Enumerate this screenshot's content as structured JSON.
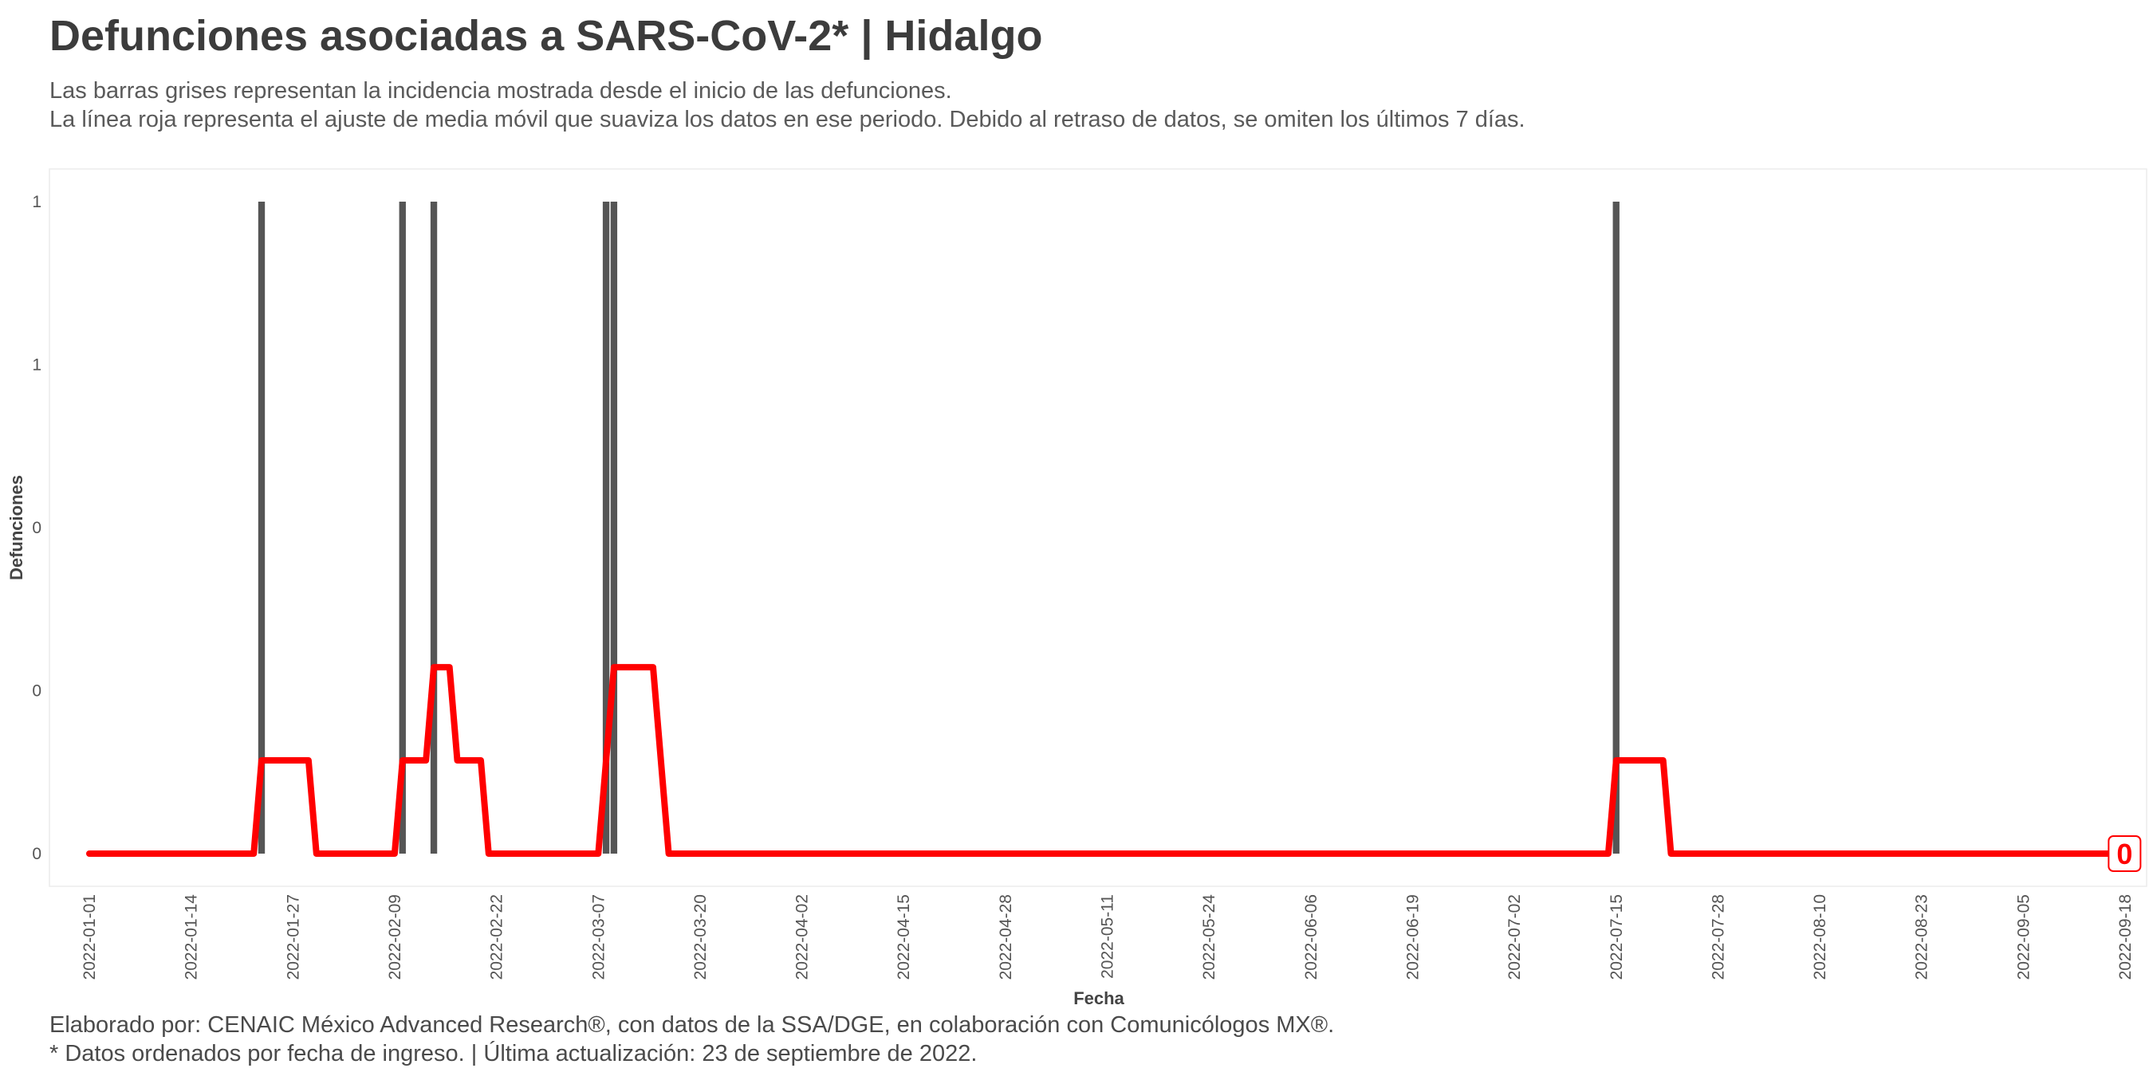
{
  "header": {
    "title": "Defunciones asociadas a SARS-CoV-2* | Hidalgo",
    "subtitle_line1": "Las barras grises representan la incidencia mostrada desde el inicio de las defunciones.",
    "subtitle_line2": "La línea roja representa el ajuste de media móvil que suaviza los datos en ese periodo. Debido al retraso de datos, se omiten los últimos 7 días."
  },
  "footer": {
    "line1": "Elaborado por: CENAIC México Advanced Research®, con datos de la SSA/DGE, en colaboración con Comunicólogos MX®.",
    "line2": "* Datos ordenados por fecha de ingreso. | Última actualización: 23 de septiembre de 2022."
  },
  "chart_data": {
    "type": "bar",
    "xlabel": "Fecha",
    "ylabel": "Defunciones",
    "x_start": "2022-01-01",
    "x_end": "2022-09-18",
    "ylim": [
      0,
      1
    ],
    "y_tick_values": [
      0,
      0.25,
      0.5,
      0.75,
      1
    ],
    "y_tick_labels": [
      "0",
      "0",
      "0",
      "1",
      "1"
    ],
    "x_tick_labels": [
      "2022-01-01",
      "2022-01-14",
      "2022-01-27",
      "2022-02-09",
      "2022-02-22",
      "2022-03-07",
      "2022-03-20",
      "2022-04-02",
      "2022-04-15",
      "2022-04-28",
      "2022-05-11",
      "2022-05-24",
      "2022-06-06",
      "2022-06-19",
      "2022-07-02",
      "2022-07-15",
      "2022-07-28",
      "2022-08-10",
      "2022-08-23",
      "2022-09-05",
      "2022-09-18"
    ],
    "grid": false,
    "series": [
      {
        "kind": "bar",
        "color": "#555555",
        "points": [
          {
            "date": "2022-01-23",
            "value": 1
          },
          {
            "date": "2022-02-10",
            "value": 1
          },
          {
            "date": "2022-02-14",
            "value": 1
          },
          {
            "date": "2022-03-08",
            "value": 1
          },
          {
            "date": "2022-03-09",
            "value": 1
          },
          {
            "date": "2022-07-15",
            "value": 1
          }
        ]
      },
      {
        "kind": "line",
        "color": "#ff0000",
        "points": [
          {
            "date": "2022-01-01",
            "value": 0
          },
          {
            "date": "2022-01-22",
            "value": 0
          },
          {
            "date": "2022-01-23",
            "value": 0.143
          },
          {
            "date": "2022-01-29",
            "value": 0.143
          },
          {
            "date": "2022-01-30",
            "value": 0
          },
          {
            "date": "2022-02-09",
            "value": 0
          },
          {
            "date": "2022-02-10",
            "value": 0.143
          },
          {
            "date": "2022-02-13",
            "value": 0.143
          },
          {
            "date": "2022-02-14",
            "value": 0.286
          },
          {
            "date": "2022-02-16",
            "value": 0.286
          },
          {
            "date": "2022-02-17",
            "value": 0.143
          },
          {
            "date": "2022-02-20",
            "value": 0.143
          },
          {
            "date": "2022-02-21",
            "value": 0
          },
          {
            "date": "2022-03-07",
            "value": 0
          },
          {
            "date": "2022-03-08",
            "value": 0.143
          },
          {
            "date": "2022-03-09",
            "value": 0.286
          },
          {
            "date": "2022-03-14",
            "value": 0.286
          },
          {
            "date": "2022-03-16",
            "value": 0
          },
          {
            "date": "2022-07-14",
            "value": 0
          },
          {
            "date": "2022-07-15",
            "value": 0.143
          },
          {
            "date": "2022-07-21",
            "value": 0.143
          },
          {
            "date": "2022-07-22",
            "value": 0
          },
          {
            "date": "2022-09-16",
            "value": 0
          }
        ]
      }
    ],
    "last_value_label": "0",
    "last_point": {
      "date": "2022-09-16",
      "value": 0
    }
  }
}
